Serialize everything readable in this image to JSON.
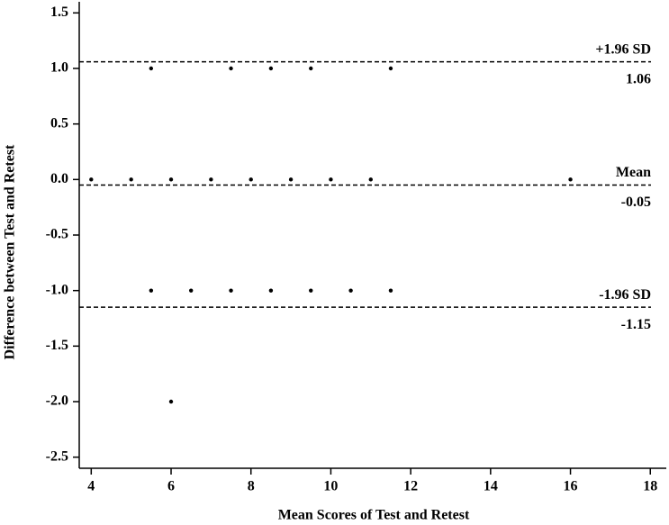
{
  "chart_data": {
    "type": "scatter",
    "x_label": "Mean Scores of Test and Retest",
    "y_label": "Difference between Test and Retest",
    "x": [
      5.5,
      7.5,
      8.5,
      9.5,
      11.5,
      4,
      5,
      6,
      7,
      8,
      9,
      10,
      11,
      16,
      5.5,
      6.5,
      7.5,
      8.5,
      9.5,
      10.5,
      11.5,
      6
    ],
    "values": [
      1,
      1,
      1,
      1,
      1,
      0,
      0,
      0,
      0,
      0,
      0,
      0,
      0,
      0,
      -1,
      -1,
      -1,
      -1,
      -1,
      -1,
      -1,
      -2
    ],
    "color": "#000000",
    "xlim": [
      3.7,
      18.4
    ],
    "ylim": [
      -2.6,
      1.6
    ],
    "xticks": [
      4,
      6,
      8,
      10,
      12,
      14,
      16,
      18
    ],
    "yticks": [
      1.5,
      {
        "value": 1.0,
        "label": "1.0"
      },
      0.5,
      {
        "value": 0.0,
        "label": "0.0"
      },
      -0.5,
      {
        "value": -1.0,
        "label": "-1.0"
      },
      -1.5,
      {
        "value": -2.0,
        "label": "-2.0"
      },
      -2.5
    ],
    "reference_lines": [
      {
        "label": "+1.96 SD",
        "value": 1.06
      },
      {
        "label": "Mean",
        "value": -0.05
      },
      {
        "label": "-1.96 SD",
        "value": -1.15
      }
    ]
  }
}
